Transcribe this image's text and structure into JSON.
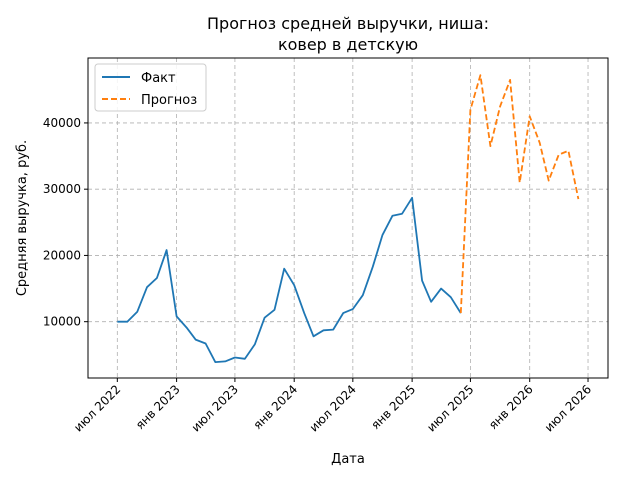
{
  "chart_data": {
    "type": "line",
    "title_lines": [
      "Прогноз средней выручки, ниша:",
      "ковер в детскую"
    ],
    "xlabel": "Дата",
    "ylabel": "Средняя выручка, руб.",
    "xlim": [
      "2022-04-01",
      "2026-09-01"
    ],
    "ylim": [
      1500,
      49800
    ],
    "x_ticks": [
      {
        "date": "2022-07-01",
        "label": "июл 2022"
      },
      {
        "date": "2023-01-01",
        "label": "янв 2023"
      },
      {
        "date": "2023-07-01",
        "label": "июл 2023"
      },
      {
        "date": "2024-01-01",
        "label": "янв 2024"
      },
      {
        "date": "2024-07-01",
        "label": "июл 2024"
      },
      {
        "date": "2025-01-01",
        "label": "янв 2025"
      },
      {
        "date": "2025-07-01",
        "label": "июл 2025"
      },
      {
        "date": "2026-01-01",
        "label": "янв 2026"
      },
      {
        "date": "2026-07-01",
        "label": "июл 2026"
      }
    ],
    "y_ticks": [
      {
        "value": 10000,
        "label": "10000"
      },
      {
        "value": 20000,
        "label": "20000"
      },
      {
        "value": 30000,
        "label": "30000"
      },
      {
        "value": 40000,
        "label": "40000"
      }
    ],
    "grid": true,
    "legend_position": "top-left",
    "series": [
      {
        "name": "Факт",
        "color": "#1f77b4",
        "style": "solid",
        "points": [
          {
            "x": "2022-07-01",
            "y": 10000
          },
          {
            "x": "2022-08-01",
            "y": 10000
          },
          {
            "x": "2022-09-01",
            "y": 11500
          },
          {
            "x": "2022-10-01",
            "y": 15200
          },
          {
            "x": "2022-11-01",
            "y": 16600
          },
          {
            "x": "2022-12-01",
            "y": 20800
          },
          {
            "x": "2023-01-01",
            "y": 10800
          },
          {
            "x": "2023-02-01",
            "y": 9100
          },
          {
            "x": "2023-03-01",
            "y": 7300
          },
          {
            "x": "2023-04-01",
            "y": 6700
          },
          {
            "x": "2023-05-01",
            "y": 3900
          },
          {
            "x": "2023-06-01",
            "y": 4000
          },
          {
            "x": "2023-07-01",
            "y": 4600
          },
          {
            "x": "2023-08-01",
            "y": 4400
          },
          {
            "x": "2023-09-01",
            "y": 6600
          },
          {
            "x": "2023-10-01",
            "y": 10600
          },
          {
            "x": "2023-11-01",
            "y": 11800
          },
          {
            "x": "2023-12-01",
            "y": 18000
          },
          {
            "x": "2024-01-01",
            "y": 15500
          },
          {
            "x": "2024-02-01",
            "y": 11300
          },
          {
            "x": "2024-03-01",
            "y": 7800
          },
          {
            "x": "2024-04-01",
            "y": 8700
          },
          {
            "x": "2024-05-01",
            "y": 8800
          },
          {
            "x": "2024-06-01",
            "y": 11300
          },
          {
            "x": "2024-07-01",
            "y": 11900
          },
          {
            "x": "2024-08-01",
            "y": 14000
          },
          {
            "x": "2024-09-01",
            "y": 18300
          },
          {
            "x": "2024-10-01",
            "y": 23100
          },
          {
            "x": "2024-11-01",
            "y": 26000
          },
          {
            "x": "2024-12-01",
            "y": 26300
          },
          {
            "x": "2025-01-01",
            "y": 28700
          },
          {
            "x": "2025-02-01",
            "y": 16200
          },
          {
            "x": "2025-03-01",
            "y": 13000
          },
          {
            "x": "2025-04-01",
            "y": 15000
          },
          {
            "x": "2025-05-01",
            "y": 13700
          },
          {
            "x": "2025-06-01",
            "y": 11300
          }
        ]
      },
      {
        "name": "Прогноз",
        "color": "#ff7f0e",
        "style": "dashed",
        "points": [
          {
            "x": "2025-06-01",
            "y": 11300
          },
          {
            "x": "2025-07-01",
            "y": 42000
          },
          {
            "x": "2025-08-01",
            "y": 47200
          },
          {
            "x": "2025-09-01",
            "y": 36500
          },
          {
            "x": "2025-10-01",
            "y": 42500
          },
          {
            "x": "2025-11-01",
            "y": 46500
          },
          {
            "x": "2025-12-01",
            "y": 31000
          },
          {
            "x": "2026-01-01",
            "y": 41000
          },
          {
            "x": "2026-02-01",
            "y": 37000
          },
          {
            "x": "2026-03-01",
            "y": 31300
          },
          {
            "x": "2026-04-01",
            "y": 35200
          },
          {
            "x": "2026-05-01",
            "y": 35800
          },
          {
            "x": "2026-06-01",
            "y": 28500
          }
        ]
      }
    ]
  }
}
